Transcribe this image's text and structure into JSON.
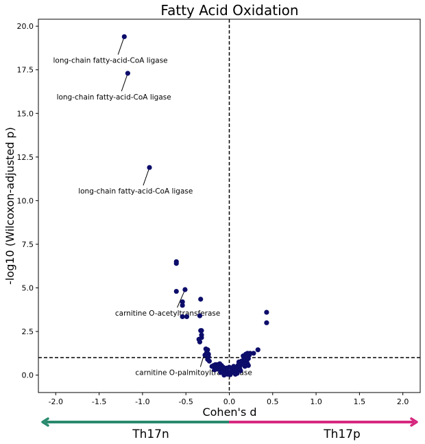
{
  "chart_data": {
    "type": "scatter",
    "title": "Fatty Acid Oxidation",
    "xlabel": "Cohen's d",
    "ylabel": "-log10 (Wilcoxon-adjusted p)",
    "xlim": [
      -2.2,
      2.2
    ],
    "ylim": [
      -1.0,
      20.4
    ],
    "x_ticks": [
      "-2.0",
      "-1.5",
      "-1.0",
      "-0.5",
      "0.0",
      "0.5",
      "1.0",
      "1.5",
      "2.0"
    ],
    "x_tick_values": [
      -2.0,
      -1.5,
      -1.0,
      -0.5,
      0.0,
      0.5,
      1.0,
      1.5,
      2.0
    ],
    "y_ticks": [
      "0.0",
      "2.5",
      "5.0",
      "7.5",
      "10.0",
      "12.5",
      "15.0",
      "17.5",
      "20.0"
    ],
    "y_tick_values": [
      0.0,
      2.5,
      5.0,
      7.5,
      10.0,
      12.5,
      15.0,
      17.5,
      20.0
    ],
    "grid": false,
    "reference_lines": {
      "vertical_x": 0.0,
      "horizontal_y": 1.0,
      "style": "dashed"
    },
    "point_color": "#0d0d6b",
    "points": [
      [
        -1.21,
        19.4
      ],
      [
        -1.17,
        17.3
      ],
      [
        -0.92,
        11.9
      ],
      [
        -0.61,
        6.5
      ],
      [
        -0.61,
        6.4
      ],
      [
        -0.61,
        4.8
      ],
      [
        -0.51,
        4.9
      ],
      [
        -0.33,
        4.35
      ],
      [
        -0.54,
        4.2
      ],
      [
        -0.54,
        4.0
      ],
      [
        -0.54,
        3.35
      ],
      [
        -0.49,
        3.35
      ],
      [
        -0.34,
        3.4
      ],
      [
        0.43,
        3.6
      ],
      [
        0.43,
        3.0
      ],
      [
        -0.33,
        2.55
      ],
      [
        -0.32,
        2.55
      ],
      [
        -0.32,
        2.3
      ],
      [
        -0.32,
        2.15
      ],
      [
        -0.35,
        2.05
      ],
      [
        -0.34,
        1.9
      ],
      [
        -0.27,
        1.5
      ],
      [
        -0.25,
        1.45
      ],
      [
        -0.26,
        1.3
      ],
      [
        -0.24,
        1.2
      ],
      [
        -0.28,
        1.15
      ],
      [
        -0.24,
        1.05
      ],
      [
        -0.25,
        0.9
      ],
      [
        -0.23,
        0.8
      ],
      [
        0.33,
        1.45
      ],
      [
        0.28,
        1.25
      ],
      [
        0.24,
        1.25
      ],
      [
        0.21,
        1.25
      ],
      [
        0.19,
        1.2
      ],
      [
        0.23,
        1.15
      ],
      [
        0.16,
        1.1
      ],
      [
        0.2,
        1.0
      ],
      [
        0.22,
        0.95
      ],
      [
        0.17,
        0.9
      ],
      [
        0.14,
        0.8
      ],
      [
        0.2,
        0.8
      ],
      [
        0.11,
        0.75
      ],
      [
        0.17,
        0.7
      ],
      [
        0.21,
        0.65
      ],
      [
        0.14,
        0.6
      ],
      [
        0.22,
        0.55
      ],
      [
        0.1,
        0.55
      ],
      [
        0.18,
        0.5
      ],
      [
        0.07,
        0.45
      ],
      [
        0.12,
        0.4
      ],
      [
        0.05,
        0.35
      ],
      [
        0.09,
        0.3
      ],
      [
        0.03,
        0.3
      ],
      [
        0.06,
        0.25
      ],
      [
        0.02,
        0.2
      ],
      [
        0.04,
        0.15
      ],
      [
        0.0,
        0.1
      ],
      [
        0.07,
        0.05
      ],
      [
        0.01,
        0.02
      ],
      [
        -0.02,
        0.05
      ],
      [
        -0.04,
        0.1
      ],
      [
        -0.01,
        0.15
      ],
      [
        -0.06,
        0.2
      ],
      [
        -0.03,
        0.25
      ],
      [
        -0.08,
        0.3
      ],
      [
        -0.05,
        0.35
      ],
      [
        -0.1,
        0.4
      ],
      [
        -0.07,
        0.45
      ],
      [
        -0.12,
        0.5
      ],
      [
        -0.09,
        0.55
      ],
      [
        -0.14,
        0.6
      ],
      [
        -0.11,
        0.65
      ],
      [
        -0.16,
        0.6
      ],
      [
        -0.13,
        0.35
      ],
      [
        -0.15,
        0.45
      ],
      [
        -0.18,
        0.55
      ],
      [
        -0.2,
        0.5
      ],
      [
        -0.17,
        0.3
      ],
      [
        -0.03,
        0.4
      ],
      [
        -0.06,
        0.0
      ],
      [
        0.0,
        0.45
      ],
      [
        0.05,
        0.5
      ],
      [
        0.13,
        0.25
      ],
      [
        0.09,
        0.1
      ],
      [
        -0.1,
        0.15
      ]
    ],
    "annotations": [
      {
        "text": "long-chain fatty-acid-CoA ligase",
        "point": [
          -1.21,
          19.4
        ],
        "text_at": [
          -1.37,
          17.9
        ]
      },
      {
        "text": "long-chain fatty-acid-CoA ligase",
        "point": [
          -1.17,
          17.3
        ],
        "text_at": [
          -1.33,
          15.8
        ]
      },
      {
        "text": "long-chain fatty-acid-CoA ligase",
        "point": [
          -0.92,
          11.9
        ],
        "text_at": [
          -1.08,
          10.4
        ]
      },
      {
        "text": "carnitine O-acetyltransferase",
        "point": [
          -0.51,
          4.9
        ],
        "text_at": [
          -0.71,
          3.4
        ]
      },
      {
        "text": "carnitine O-palmitoyltransferase",
        "point": [
          -0.27,
          1.5
        ],
        "text_at": [
          -0.41,
          0.0
        ]
      }
    ],
    "groups": {
      "left": {
        "label": "Th17n",
        "color": "#2a8a6e"
      },
      "right": {
        "label": "Th17p",
        "color": "#d6297f"
      }
    }
  }
}
